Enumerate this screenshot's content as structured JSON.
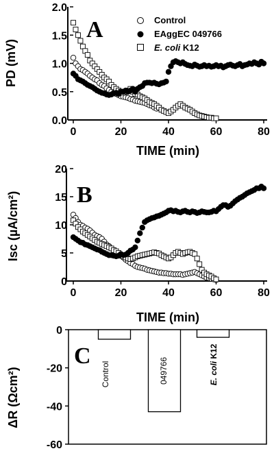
{
  "chart_data": [
    {
      "panel": "A",
      "type": "scatter",
      "xlabel": "TIME (min)",
      "ylabel": "PD (mV)",
      "xlim": [
        0,
        80
      ],
      "ylim": [
        0,
        2
      ],
      "xticks": [
        "0",
        "20",
        "40",
        "60",
        "80"
      ],
      "yticks": [
        "0.0",
        "0.5",
        "1.0",
        "1.5",
        "2.0"
      ],
      "legend_position": "top-right",
      "series": [
        {
          "name": "Control",
          "marker": "circle-open",
          "x": [
            0,
            1,
            2,
            3,
            4,
            5,
            6,
            7,
            8,
            9,
            10,
            11,
            12,
            13,
            14,
            15,
            16,
            17,
            18,
            19,
            20,
            21,
            22,
            23,
            24,
            25,
            26,
            27,
            28,
            29,
            30,
            31,
            32,
            33,
            34,
            35
          ],
          "y": [
            1.1,
            1.0,
            0.95,
            0.9,
            0.88,
            0.85,
            0.82,
            0.78,
            0.75,
            0.72,
            0.7,
            0.65,
            0.62,
            0.6,
            0.56,
            0.53,
            0.5,
            0.48,
            0.46,
            0.44,
            0.42,
            0.41,
            0.4,
            0.39,
            0.37,
            0.36,
            0.34,
            0.33,
            0.32,
            0.31,
            0.3,
            0.28,
            0.26,
            0.25,
            0.22,
            0.2
          ]
        },
        {
          "name": "EAggEC 049766",
          "marker": "circle-filled",
          "x": [
            0,
            1,
            2,
            3,
            4,
            5,
            6,
            7,
            8,
            9,
            10,
            11,
            12,
            13,
            14,
            15,
            16,
            17,
            18,
            19,
            20,
            21,
            22,
            23,
            24,
            25,
            26,
            27,
            28,
            29,
            30,
            31,
            32,
            33,
            34,
            35,
            36,
            37,
            38,
            39,
            40,
            41,
            42,
            43,
            44,
            45,
            46,
            47,
            48,
            49,
            50,
            51,
            52,
            53,
            54,
            55,
            56,
            57,
            58,
            59,
            60,
            61,
            62,
            63,
            64,
            65,
            66,
            67,
            68,
            69,
            70,
            71,
            72,
            73,
            74,
            75,
            76,
            77,
            78,
            79,
            80
          ],
          "y": [
            0.82,
            0.78,
            0.72,
            0.7,
            0.68,
            0.65,
            0.62,
            0.6,
            0.58,
            0.55,
            0.52,
            0.5,
            0.48,
            0.47,
            0.45,
            0.44,
            0.45,
            0.47,
            0.48,
            0.46,
            0.5,
            0.5,
            0.52,
            0.5,
            0.52,
            0.55,
            0.5,
            0.55,
            0.58,
            0.6,
            0.65,
            0.66,
            0.66,
            0.65,
            0.66,
            0.64,
            0.63,
            0.65,
            0.66,
            0.68,
            0.85,
            0.95,
            1.02,
            1.04,
            1.02,
            1.0,
            1.02,
            0.99,
            0.97,
            0.96,
            0.95,
            0.98,
            0.96,
            0.94,
            0.95,
            0.97,
            0.95,
            0.96,
            0.94,
            0.95,
            0.97,
            0.95,
            0.96,
            0.93,
            0.95,
            0.97,
            0.98,
            0.96,
            0.95,
            0.97,
            0.99,
            0.95,
            0.97,
            0.98,
            1.0,
            0.99,
            1.02,
            1.0,
            0.98,
            1.03,
            1.0
          ]
        },
        {
          "name": "E. coli K12",
          "marker": "square-open",
          "x": [
            0,
            1,
            2,
            3,
            4,
            5,
            6,
            7,
            8,
            9,
            10,
            11,
            12,
            13,
            14,
            15,
            16,
            17,
            18,
            19,
            20,
            21,
            22,
            23,
            24,
            25,
            26,
            27,
            28,
            29,
            30,
            31,
            32,
            33,
            34,
            35,
            36,
            37,
            38,
            39,
            40,
            41,
            42,
            43,
            44,
            45,
            46,
            47,
            48,
            49,
            50,
            51,
            52,
            53,
            54,
            55,
            56,
            57,
            58,
            59,
            60
          ],
          "y": [
            1.72,
            1.6,
            1.5,
            1.4,
            1.3,
            1.22,
            1.15,
            1.05,
            1.0,
            0.95,
            0.9,
            0.85,
            0.8,
            0.75,
            0.72,
            0.68,
            0.62,
            0.58,
            0.55,
            0.52,
            0.5,
            0.48,
            0.5,
            0.52,
            0.55,
            0.5,
            0.46,
            0.45,
            0.42,
            0.4,
            0.38,
            0.35,
            0.32,
            0.3,
            0.28,
            0.25,
            0.22,
            0.18,
            0.16,
            0.14,
            0.12,
            0.15,
            0.18,
            0.22,
            0.25,
            0.28,
            0.25,
            0.22,
            0.2,
            0.18,
            0.15,
            0.12,
            0.1,
            0.08,
            0.07,
            0.06,
            0.05,
            0.04,
            0.04,
            0.03,
            0.03
          ]
        }
      ]
    },
    {
      "panel": "B",
      "type": "scatter",
      "xlabel": "TIME (min)",
      "ylabel": "Isc (µA/cm²)",
      "xlim": [
        0,
        80
      ],
      "ylim": [
        0,
        20
      ],
      "xticks": [
        "0",
        "20",
        "40",
        "60",
        "80"
      ],
      "yticks": [
        "0",
        "5",
        "10",
        "15",
        "20"
      ],
      "series": [
        {
          "name": "Control",
          "marker": "circle-open",
          "x": [
            0,
            1,
            2,
            3,
            4,
            5,
            6,
            7,
            8,
            9,
            10,
            11,
            12,
            13,
            14,
            15,
            16,
            17,
            18,
            19,
            20,
            21,
            22,
            23,
            24,
            25,
            26,
            27,
            28,
            29,
            30,
            31,
            32,
            33,
            34,
            35,
            36,
            37,
            38,
            39,
            40,
            41,
            42,
            43,
            44,
            45,
            46,
            47,
            48,
            49,
            50,
            51,
            52,
            53,
            54,
            55,
            56,
            57,
            58,
            59,
            60
          ],
          "y": [
            11.8,
            11.2,
            10.5,
            10.0,
            9.8,
            9.5,
            9.3,
            9.0,
            8.6,
            8.2,
            8.0,
            7.8,
            7.5,
            7.0,
            6.5,
            6.2,
            5.8,
            5.5,
            5.0,
            4.8,
            4.5,
            4.2,
            3.8,
            3.5,
            3.2,
            3.0,
            2.7,
            2.5,
            2.4,
            2.3,
            2.2,
            2.0,
            1.9,
            1.8,
            1.7,
            1.6,
            1.5,
            1.5,
            1.4,
            1.4,
            1.3,
            1.3,
            1.2,
            1.2,
            1.2,
            1.2,
            1.1,
            1.2,
            1.3,
            1.4,
            1.5,
            1.6,
            1.4,
            1.2,
            1.0,
            0.8,
            0.6,
            0.5,
            0.4,
            0.3,
            0.2
          ]
        },
        {
          "name": "EAggEC 049766",
          "marker": "circle-filled",
          "x": [
            0,
            1,
            2,
            3,
            4,
            5,
            6,
            7,
            8,
            9,
            10,
            11,
            12,
            13,
            14,
            15,
            16,
            17,
            18,
            19,
            20,
            21,
            22,
            23,
            24,
            25,
            26,
            27,
            28,
            29,
            30,
            31,
            32,
            33,
            34,
            35,
            36,
            37,
            38,
            39,
            40,
            41,
            42,
            43,
            44,
            45,
            46,
            47,
            48,
            49,
            50,
            51,
            52,
            53,
            54,
            55,
            56,
            57,
            58,
            59,
            60,
            61,
            62,
            63,
            64,
            65,
            66,
            67,
            68,
            69,
            70,
            71,
            72,
            73,
            74,
            75,
            76,
            77,
            78,
            79,
            80
          ],
          "y": [
            7.8,
            7.5,
            7.2,
            6.9,
            6.8,
            6.5,
            6.4,
            6.2,
            6.0,
            5.8,
            5.6,
            5.5,
            5.2,
            5.0,
            4.8,
            4.6,
            4.6,
            4.5,
            4.4,
            4.5,
            4.8,
            4.6,
            4.7,
            5.0,
            5.4,
            5.6,
            6.0,
            7.2,
            8.5,
            9.5,
            10.5,
            10.8,
            11.0,
            11.2,
            11.3,
            11.5,
            11.6,
            11.8,
            12.0,
            12.2,
            12.5,
            12.6,
            12.4,
            12.5,
            12.3,
            12.2,
            12.4,
            12.5,
            12.3,
            12.2,
            12.4,
            12.3,
            12.1,
            12.2,
            12.4,
            12.3,
            12.2,
            12.2,
            12.3,
            12.5,
            12.4,
            12.8,
            13.2,
            13.5,
            13.5,
            13.2,
            13.4,
            13.8,
            14.2,
            14.5,
            14.8,
            15.0,
            15.3,
            15.6,
            15.8,
            16.0,
            16.2,
            16.5,
            16.5,
            16.8,
            16.5
          ]
        },
        {
          "name": "E. coli K12",
          "marker": "square-open",
          "x": [
            0,
            1,
            2,
            3,
            4,
            5,
            6,
            7,
            8,
            9,
            10,
            11,
            12,
            13,
            14,
            15,
            16,
            17,
            18,
            19,
            20,
            21,
            22,
            23,
            24,
            25,
            26,
            27,
            28,
            29,
            30,
            31,
            32,
            33,
            34,
            35,
            36,
            37,
            38,
            39,
            40,
            41,
            42,
            43,
            44,
            45,
            46,
            47,
            48,
            49,
            50,
            51,
            52,
            53,
            54,
            55,
            56,
            57,
            58,
            59,
            60
          ],
          "y": [
            10.8,
            10.2,
            9.6,
            9.2,
            8.8,
            8.5,
            8.2,
            7.9,
            7.6,
            7.3,
            7.0,
            6.8,
            6.6,
            6.4,
            6.2,
            6.0,
            5.8,
            5.5,
            5.3,
            5.0,
            4.6,
            4.4,
            4.2,
            4.0,
            3.9,
            4.0,
            4.2,
            4.4,
            4.5,
            4.6,
            4.7,
            4.8,
            4.9,
            5.0,
            5.1,
            5.0,
            4.9,
            4.6,
            4.4,
            4.2,
            4.0,
            4.2,
            4.6,
            5.0,
            5.2,
            5.0,
            4.8,
            5.0,
            5.1,
            5.2,
            5.0,
            4.8,
            4.0,
            3.0,
            2.0,
            1.5,
            1.2,
            1.0,
            0.8,
            0.5,
            0.3
          ]
        }
      ]
    },
    {
      "panel": "C",
      "type": "bar",
      "ylabel": "ΔR (Ωcm²)",
      "ylim": [
        -60,
        0
      ],
      "yticks": [
        "0",
        "-20",
        "-40",
        "-60"
      ],
      "categories": [
        "Control",
        "049766",
        "E. coli K12"
      ],
      "values": [
        -5,
        -43,
        -4
      ]
    }
  ],
  "panels": {
    "a": "A",
    "b": "B",
    "c": "C"
  },
  "legend": {
    "control": "Control",
    "eaggec": "EAggEC 049766",
    "k12_italic": "E. coli",
    "k12_rest": " K12"
  },
  "axis_labels": {
    "a_x": "TIME (min)",
    "a_y": "PD (mV)",
    "b_x": "TIME (min)",
    "b_y": "Isc (µA/cm²)",
    "c_y": "ΔR (Ωcm²)"
  },
  "bars": {
    "control": "Control",
    "mid": "049766",
    "k12_italic": "E. coli",
    "k12_rest": " K12"
  },
  "colors": {
    "ink": "#000000",
    "paper": "#ffffff"
  }
}
